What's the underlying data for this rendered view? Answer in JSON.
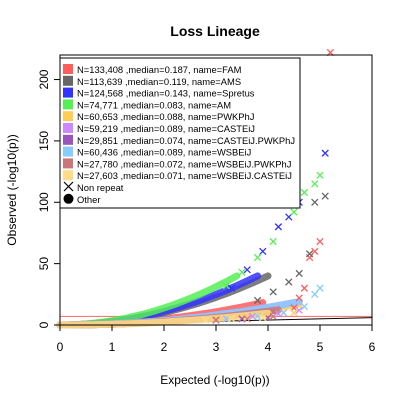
{
  "chart_data": {
    "type": "scatter",
    "title": "Loss Lineage",
    "xlabel": "Expected (-log10(p))",
    "ylabel": "Observed (-log10(p))",
    "xlim": [
      0,
      6
    ],
    "ylim": [
      0,
      220
    ],
    "x_ticks": [
      "0",
      "1",
      "2",
      "3",
      "4",
      "5",
      "6"
    ],
    "y_ticks": [
      "0",
      "50",
      "100",
      "150",
      "200"
    ],
    "x_tick_values": [
      0,
      1,
      2,
      3,
      4,
      5,
      6
    ],
    "y_tick_values": [
      0,
      50,
      100,
      150,
      200
    ],
    "grid": false,
    "legend_position": "top-left",
    "reference_lines": [
      {
        "type": "diagonal",
        "color": "#000000"
      },
      {
        "type": "horizontal",
        "y": 7,
        "color": "#ff6666"
      }
    ],
    "legend_extra": [
      {
        "label": "Non repeat",
        "symbol": "x"
      },
      {
        "label": "Other",
        "symbol": "dot"
      }
    ],
    "series": [
      {
        "label": "N=133,408 ,median=0.187, name=FAM",
        "color": "#ff5c5c",
        "points": [
          [
            4.3,
            10
          ],
          [
            4.5,
            14
          ],
          [
            4.6,
            22
          ],
          [
            4.7,
            30
          ],
          [
            4.8,
            55
          ],
          [
            4.9,
            60
          ],
          [
            5.0,
            68
          ],
          [
            5.2,
            222
          ]
        ]
      },
      {
        "label": "N=113,639 ,median=0.119, name=AMS",
        "color": "#666666",
        "points": [
          [
            3.8,
            20
          ],
          [
            4.1,
            27
          ],
          [
            4.4,
            35
          ],
          [
            4.6,
            42
          ],
          [
            4.8,
            58
          ],
          [
            4.9,
            100
          ],
          [
            5.1,
            105
          ]
        ]
      },
      {
        "label": "N=124,568 ,median=0.143, name=Spretus",
        "color": "#3333ff",
        "points": [
          [
            3.3,
            30
          ],
          [
            3.6,
            45
          ],
          [
            3.9,
            60
          ],
          [
            4.2,
            80
          ],
          [
            4.4,
            88
          ],
          [
            4.6,
            100
          ],
          [
            5.1,
            140
          ]
        ]
      },
      {
        "label": "N=74,771 ,median=0.083, name=AM",
        "color": "#55ee55",
        "points": [
          [
            3.2,
            32
          ],
          [
            3.5,
            43
          ],
          [
            3.8,
            55
          ],
          [
            4.1,
            68
          ],
          [
            4.5,
            92
          ],
          [
            4.7,
            108
          ],
          [
            4.9,
            115
          ],
          [
            5.0,
            122
          ]
        ]
      },
      {
        "label": "N=60,653 ,median=0.088, name=PWKPhJ",
        "color": "#ffcc55",
        "points": [
          [
            3.0,
            5
          ],
          [
            3.5,
            6
          ],
          [
            4.0,
            8
          ],
          [
            4.5,
            10
          ]
        ]
      },
      {
        "label": "N=59,219 ,median=0.089, name=CASTEiJ",
        "color": "#cc88ff",
        "points": [
          [
            3.2,
            5
          ],
          [
            3.7,
            7
          ],
          [
            4.2,
            9
          ],
          [
            4.6,
            12
          ]
        ]
      },
      {
        "label": "N=29,851 ,median=0.074, name=CASTEiJ.PWKPhJ",
        "color": "#9955bb",
        "points": [
          [
            3.0,
            4
          ],
          [
            3.5,
            5
          ],
          [
            4.0,
            6
          ]
        ]
      },
      {
        "label": "N=60,436 ,median=0.089, name=WSBEiJ",
        "color": "#88ccff",
        "points": [
          [
            3.2,
            5
          ],
          [
            3.8,
            7
          ],
          [
            4.3,
            10
          ],
          [
            4.7,
            15
          ],
          [
            4.9,
            25
          ],
          [
            5.0,
            30
          ]
        ]
      },
      {
        "label": "N=27,780 ,median=0.072, name=WSBEiJ.PWKPhJ",
        "color": "#cc7777",
        "points": [
          [
            3.0,
            4
          ],
          [
            3.6,
            5
          ],
          [
            4.1,
            7
          ]
        ]
      },
      {
        "label": "N=27,603 ,median=0.071, name=WSBEiJ.CASTEiJ",
        "color": "#ffdd88",
        "points": [
          [
            2.8,
            4
          ],
          [
            3.3,
            5
          ],
          [
            3.9,
            6
          ]
        ]
      }
    ]
  }
}
